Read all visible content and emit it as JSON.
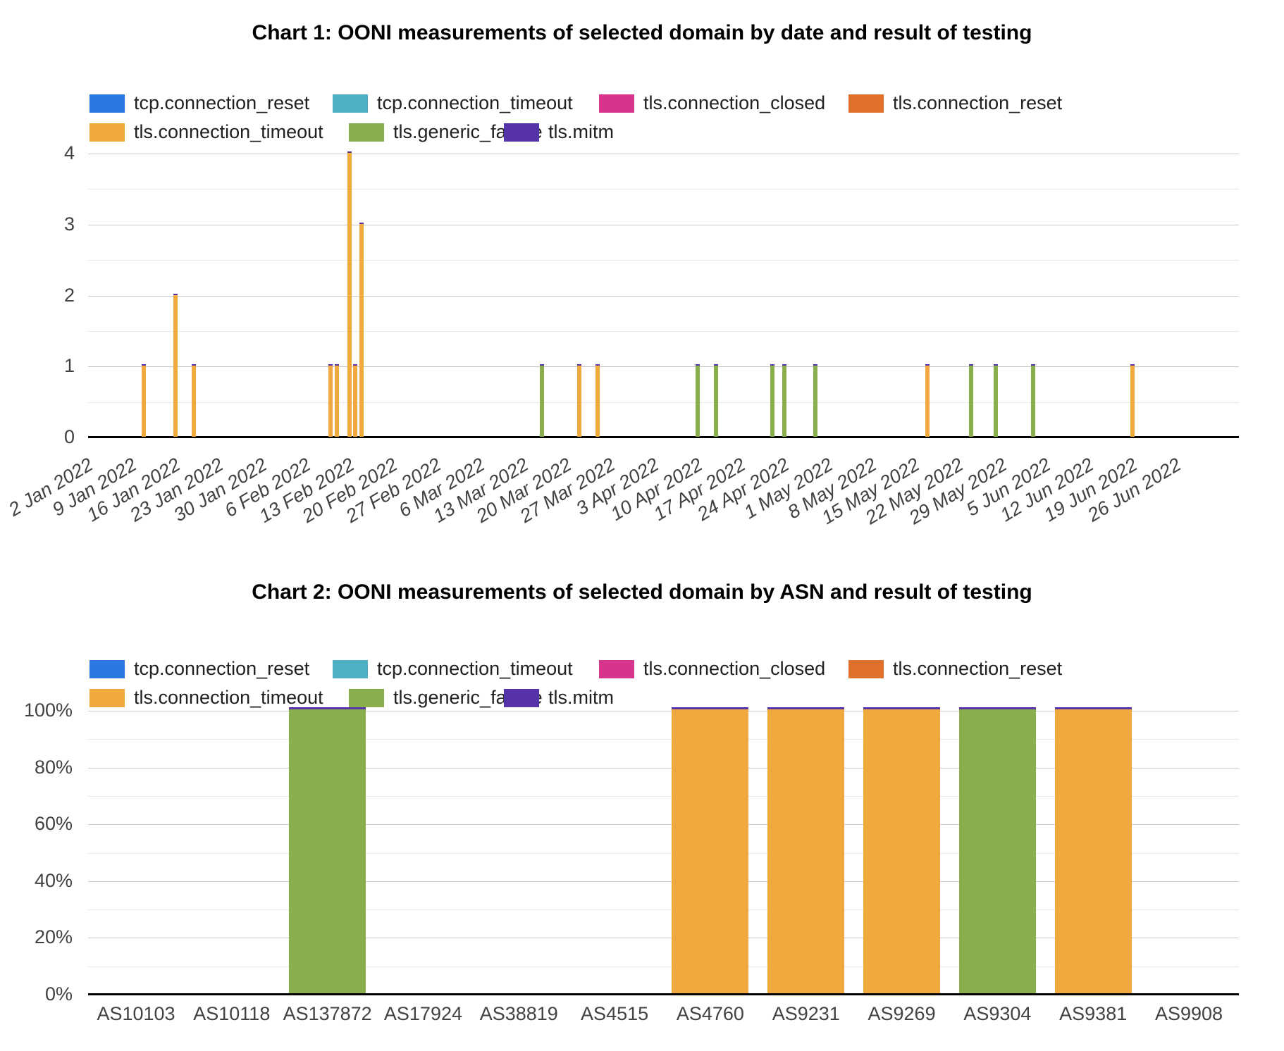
{
  "legend": {
    "rows": [
      {
        "items": [
          {
            "label": "tcp.connection_reset",
            "color": "#2D78E0"
          },
          {
            "label": "tcp.connection_timeout",
            "color": "#4FAFC3"
          },
          {
            "label": "tls.connection_closed",
            "color": "#D6348D"
          },
          {
            "label": "tls.connection_reset",
            "color": "#E0712C"
          }
        ]
      },
      {
        "items": [
          {
            "label": "tls.connection_timeout",
            "color": "#F0A93C"
          },
          {
            "label": "tls.generic_failure",
            "color": "#8BAE4D"
          },
          {
            "label": "tls.mitm",
            "color": "#5733A9"
          }
        ]
      }
    ]
  },
  "chart_data": [
    {
      "id": "chart1",
      "type": "bar",
      "title": "Chart 1: OONI measurements of selected domain by date and result of testing",
      "xlabel": "",
      "ylabel": "",
      "ylim": [
        0,
        4
      ],
      "y_ticks": [
        "0",
        "1",
        "2",
        "3",
        "4"
      ],
      "y_minor_step": 0.5,
      "grid": true,
      "legend_position": "top",
      "x_axis": {
        "type": "date",
        "start": "2022-01-02",
        "tick_interval_days": 7,
        "tick_labels": [
          "2 Jan 2022",
          "9 Jan 2022",
          "16 Jan 2022",
          "23 Jan 2022",
          "30 Jan 2022",
          "6 Feb 2022",
          "13 Feb 2022",
          "20 Feb 2022",
          "27 Feb 2022",
          "6 Mar 2022",
          "13 Mar 2022",
          "20 Mar 2022",
          "27 Mar 2022",
          "3 Apr 2022",
          "10 Apr 2022",
          "17 Apr 2022",
          "24 Apr 2022",
          "1 May 2022",
          "8 May 2022",
          "15 May 2022",
          "22 May 2022",
          "29 May 2022",
          "5 Jun 2022",
          "12 Jun 2022",
          "19 Jun 2022",
          "26 Jun 2022"
        ]
      },
      "cap_series": "tls.mitm",
      "points": [
        {
          "date": "2022-01-11",
          "series": "tls.connection_timeout",
          "value": 1
        },
        {
          "date": "2022-01-16",
          "series": "tls.connection_timeout",
          "value": 2
        },
        {
          "date": "2022-01-19",
          "series": "tls.connection_timeout",
          "value": 1
        },
        {
          "date": "2022-02-10",
          "series": "tls.connection_timeout",
          "value": 1
        },
        {
          "date": "2022-02-11",
          "series": "tls.connection_timeout",
          "value": 1
        },
        {
          "date": "2022-02-13",
          "series": "tls.connection_timeout",
          "value": 4
        },
        {
          "date": "2022-02-14",
          "series": "tls.connection_timeout",
          "value": 1
        },
        {
          "date": "2022-02-15",
          "series": "tls.connection_timeout",
          "value": 3
        },
        {
          "date": "2022-03-16",
          "series": "tls.generic_failure",
          "value": 1
        },
        {
          "date": "2022-03-22",
          "series": "tls.connection_timeout",
          "value": 1
        },
        {
          "date": "2022-03-25",
          "series": "tls.connection_timeout",
          "value": 1
        },
        {
          "date": "2022-04-10",
          "series": "tls.generic_failure",
          "value": 1
        },
        {
          "date": "2022-04-13",
          "series": "tls.generic_failure",
          "value": 1
        },
        {
          "date": "2022-04-22",
          "series": "tls.generic_failure",
          "value": 1
        },
        {
          "date": "2022-04-24",
          "series": "tls.generic_failure",
          "value": 1
        },
        {
          "date": "2022-04-29",
          "series": "tls.generic_failure",
          "value": 1
        },
        {
          "date": "2022-05-17",
          "series": "tls.connection_timeout",
          "value": 1
        },
        {
          "date": "2022-05-24",
          "series": "tls.generic_failure",
          "value": 1
        },
        {
          "date": "2022-05-28",
          "series": "tls.generic_failure",
          "value": 1
        },
        {
          "date": "2022-06-03",
          "series": "tls.generic_failure",
          "value": 1
        },
        {
          "date": "2022-06-19",
          "series": "tls.connection_timeout",
          "value": 1
        }
      ]
    },
    {
      "id": "chart2",
      "type": "bar",
      "stacking": "percent",
      "title": "Chart 2: OONI measurements of selected domain by ASN and result of testing",
      "xlabel": "",
      "ylabel": "",
      "ylim": [
        0,
        100
      ],
      "y_ticks": [
        "0%",
        "20%",
        "40%",
        "60%",
        "80%",
        "100%"
      ],
      "y_minor_step": 10,
      "grid": true,
      "legend_position": "top",
      "categories": [
        "AS10103",
        "AS10118",
        "AS137872",
        "AS17924",
        "AS38819",
        "AS4515",
        "AS4760",
        "AS9231",
        "AS9269",
        "AS9304",
        "AS9381",
        "AS9908"
      ],
      "cap_series": "tls.mitm",
      "bars": [
        {
          "category": "AS137872",
          "series": "tls.generic_failure",
          "value_pct": 100
        },
        {
          "category": "AS4760",
          "series": "tls.connection_timeout",
          "value_pct": 100
        },
        {
          "category": "AS9231",
          "series": "tls.connection_timeout",
          "value_pct": 100
        },
        {
          "category": "AS9269",
          "series": "tls.connection_timeout",
          "value_pct": 100
        },
        {
          "category": "AS9304",
          "series": "tls.generic_failure",
          "value_pct": 100
        },
        {
          "category": "AS9381",
          "series": "tls.connection_timeout",
          "value_pct": 100
        }
      ]
    }
  ]
}
